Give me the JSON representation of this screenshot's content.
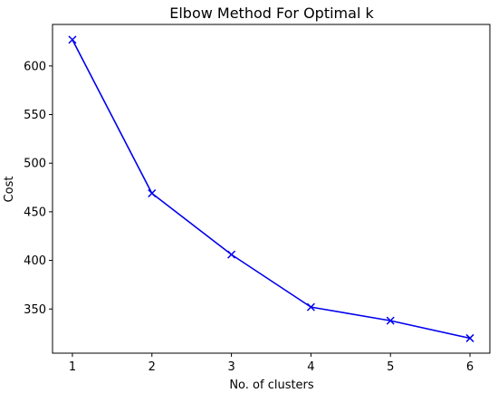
{
  "chart_data": {
    "type": "line",
    "title": "Elbow Method For Optimal k",
    "xlabel": "No. of clusters",
    "ylabel": "Cost",
    "x": [
      1,
      2,
      3,
      4,
      5,
      6
    ],
    "series": [
      {
        "values": [
          627,
          469,
          406,
          352,
          338,
          320
        ],
        "color": "#0000ee",
        "marker": "x"
      }
    ],
    "xticks": [
      "1",
      "2",
      "3",
      "4",
      "5",
      "6"
    ],
    "yticks": [
      "350",
      "400",
      "450",
      "500",
      "550",
      "600"
    ],
    "xlim": [
      0.75,
      6.25
    ],
    "ylim": [
      304.6,
      642.7
    ],
    "grid": false,
    "legend": "none"
  }
}
